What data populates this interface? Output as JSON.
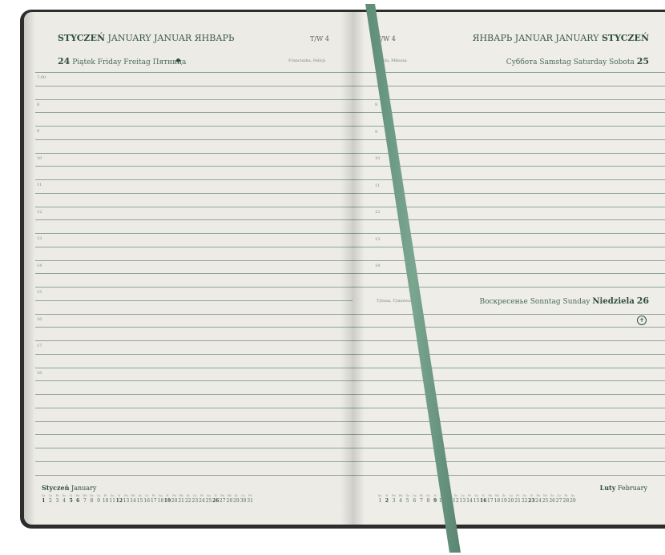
{
  "left": {
    "header": {
      "pl": "STYCZEŃ",
      "en": "JANUARY",
      "de": "JANUAR",
      "ru": "ЯНВАРЬ"
    },
    "week": "T/W 4",
    "day": {
      "num": "24",
      "pl": "Piątek",
      "en": "Friday",
      "de": "Freitag",
      "ru": "Пятница"
    },
    "names": "Franciszka, Felicji",
    "hours": [
      "7:00",
      "8",
      "9",
      "10",
      "11",
      "12",
      "13",
      "14",
      "15",
      "16",
      "17",
      "18"
    ],
    "month_label": {
      "pl": "Styczeń",
      "en": "January"
    },
    "calendar": {
      "weekdays": [
        "Śr",
        "Cz",
        "Pt",
        "So",
        "N",
        "Pn",
        "Wt",
        "Śr",
        "Cz",
        "Pt",
        "So",
        "N",
        "Pn",
        "Wt",
        "Śr",
        "Cz",
        "Pt",
        "So",
        "N",
        "Pn",
        "Wt",
        "Śr",
        "Cz",
        "Pt",
        "So",
        "N",
        "Pn",
        "Wt",
        "Śr",
        "Cz",
        "Pt"
      ],
      "days": [
        "1",
        "2",
        "3",
        "4",
        "5",
        "6",
        "7",
        "8",
        "9",
        "10",
        "11",
        "12",
        "13",
        "14",
        "15",
        "16",
        "17",
        "18",
        "19",
        "20",
        "21",
        "22",
        "23",
        "24",
        "25",
        "26",
        "27",
        "28",
        "29",
        "30",
        "31"
      ]
    }
  },
  "right": {
    "header": {
      "ru": "ЯНВАРЬ",
      "de": "JANUAR",
      "en": "JANUARY",
      "pl": "STYCZEŃ"
    },
    "week": "T/W 4",
    "day1": {
      "ru": "Суббота",
      "de": "Samstag",
      "en": "Saturday",
      "pl": "Sobota",
      "num": "25"
    },
    "names1": "Pawła, Miłosza",
    "hours": [
      "8",
      "9",
      "10",
      "11",
      "12",
      "13",
      "14"
    ],
    "day2": {
      "ru": "Воскресенье",
      "de": "Sonntag",
      "en": "Sunday",
      "pl": "Niedziela",
      "num": "26"
    },
    "names2": "Tytusa, Tymoteusza",
    "month_label": {
      "pl": "Luty",
      "en": "February"
    },
    "calendar": {
      "weekdays": [
        "So",
        "N",
        "Pn",
        "Wt",
        "Śr",
        "Cz",
        "Pt",
        "So",
        "N",
        "Pn",
        "Wt",
        "Śr",
        "Cz",
        "Pt",
        "So",
        "N",
        "Pn",
        "Wt",
        "Śr",
        "Cz",
        "Pt",
        "So",
        "N",
        "Pn",
        "Wt",
        "Śr",
        "Cz",
        "Pt",
        "So"
      ],
      "days": [
        "1",
        "2",
        "3",
        "4",
        "5",
        "6",
        "7",
        "8",
        "9",
        "10",
        "11",
        "12",
        "13",
        "14",
        "15",
        "16",
        "17",
        "18",
        "19",
        "20",
        "21",
        "22",
        "23",
        "24",
        "25",
        "26",
        "27",
        "28",
        "29"
      ]
    }
  },
  "colors": {
    "ribbon": "#6e9a84",
    "ink": "#2f4d41",
    "paper": "#ecebe6",
    "cover": "#2d2d2d"
  }
}
